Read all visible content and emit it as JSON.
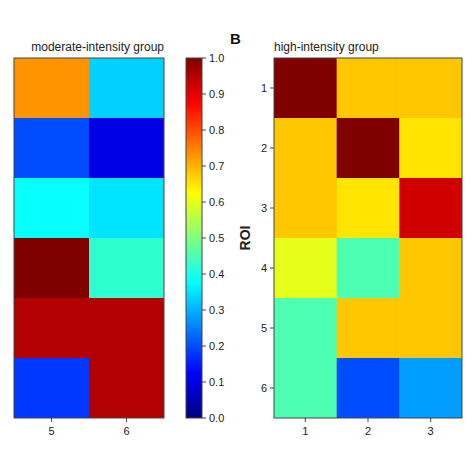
{
  "chart_data": [
    {
      "type": "heatmap",
      "title": "moderate-intensity group",
      "categories": [
        "5",
        "6"
      ],
      "values": [
        [
          0.73,
          0.33
        ],
        [
          0.2,
          0.1
        ],
        [
          0.38,
          0.35
        ],
        [
          1.0,
          0.42
        ],
        [
          0.95,
          0.95
        ],
        [
          0.18,
          0.95
        ]
      ],
      "tick_labels": "x",
      "zlim": [
        0,
        1
      ],
      "zticks": [
        {
          "value": 0,
          "label": "0.0"
        },
        0.1,
        0.2,
        0.3,
        0.4,
        0.5,
        0.6,
        0.7,
        0.8,
        0.9,
        {
          "value": 1.0,
          "label": "1.0"
        }
      ]
    },
    {
      "type": "heatmap",
      "title": "high-intensity group",
      "annotation": "B",
      "categories": [
        "1",
        "2",
        "3"
      ],
      "y_categories": [
        "1",
        "2",
        "3",
        "4",
        "5",
        "6"
      ],
      "y_label": "ROI",
      "values": [
        [
          1.0,
          0.68,
          0.68
        ],
        [
          0.68,
          1.0,
          0.65
        ],
        [
          0.68,
          0.65,
          0.92
        ],
        [
          0.6,
          0.45,
          0.68
        ],
        [
          0.45,
          0.68,
          0.68
        ],
        [
          0.45,
          0.2,
          0.28
        ]
      ],
      "zlim": [
        0,
        1
      ]
    }
  ]
}
